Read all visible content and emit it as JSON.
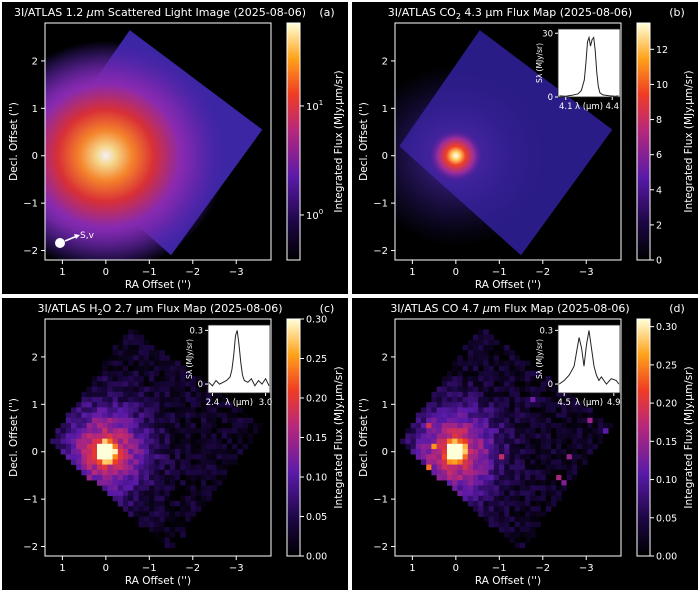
{
  "figure": {
    "panels": [
      {
        "id": "a",
        "tag": "(a)",
        "title_pre": "3I/ATLAS 1.2 ",
        "title_mu": "μ",
        "title_sub": "",
        "title_post": "m Scattered Light Image (2025-08-06)",
        "xlabel": "RA Offset ('')",
        "ylabel": "Decl. Offset ('')",
        "x_ticks": [
          "1",
          "0",
          "−1",
          "−2",
          "−3"
        ],
        "y_ticks": [
          "2",
          "1",
          "0",
          "−1",
          "−2"
        ],
        "colorbar": {
          "label": "Integrated Flux (MJy.μm/sr)",
          "scale": "log",
          "ticks": [
            {
              "base": "10",
              "exp": "1",
              "frac": 0.35
            },
            {
              "base": "10",
              "exp": "0",
              "frac": 0.81
            }
          ],
          "colormap": "hot-purple"
        },
        "image_kind": "smooth",
        "annotation": {
          "label": "S,v",
          "icon": "sun-velocity-arrow-icon"
        }
      },
      {
        "id": "b",
        "tag": "(b)",
        "title_pre": "3I/ATLAS CO",
        "title_mu": "",
        "title_sub": "2",
        "title_post": " 4.3 μm Flux Map (2025-08-06)",
        "xlabel": "RA Offset ('')",
        "ylabel": "Decl. Offset ('')",
        "x_ticks": [
          "1",
          "0",
          "−1",
          "−2",
          "−3"
        ],
        "y_ticks": [
          "2",
          "1",
          "0",
          "−1",
          "−2"
        ],
        "colorbar": {
          "label": "Integrated Flux (MJy.μm/sr)",
          "scale": "linear",
          "ticks": [
            "0",
            "2",
            "4",
            "6",
            "8",
            "10",
            "12"
          ],
          "vmax": 13.5
        },
        "image_kind": "smooth",
        "inset": {
          "ylabel": "Sλ (MJy/sr)",
          "xlabel": "λ (μm)",
          "x_ticks": [
            "4.1",
            "4.4"
          ],
          "y_ticks": [
            "0",
            "30"
          ],
          "x_range": [
            4.05,
            4.45
          ],
          "y_range": [
            0,
            32
          ],
          "spectrum": {
            "x": [
              4.06,
              4.1,
              4.14,
              4.18,
              4.2,
              4.22,
              4.23,
              4.24,
              4.25,
              4.26,
              4.27,
              4.28,
              4.29,
              4.3,
              4.31,
              4.32,
              4.34,
              4.38,
              4.42,
              4.44
            ],
            "y": [
              0.5,
              0.4,
              0.8,
              1.5,
              3,
              8,
              16,
              26,
              28,
              24,
              27,
              28,
              22,
              12,
              5,
              2,
              1,
              0.6,
              0.4,
              0.5
            ]
          }
        }
      },
      {
        "id": "c",
        "tag": "(c)",
        "title_pre": "3I/ATLAS H",
        "title_mu": "",
        "title_sub": "2",
        "title_post": "O 2.7 μm Flux Map (2025-08-06)",
        "xlabel": "RA Offset ('')",
        "ylabel": "Decl. Offset ('')",
        "x_ticks": [
          "1",
          "0",
          "−1",
          "−2",
          "−3"
        ],
        "y_ticks": [
          "2",
          "1",
          "0",
          "−1",
          "−2"
        ],
        "colorbar": {
          "label": "Integrated Flux (MJy.μm/sr)",
          "scale": "linear",
          "ticks": [
            "0.00",
            "0.05",
            "0.10",
            "0.15",
            "0.20",
            "0.25",
            "0.30"
          ],
          "vmax": 0.3
        },
        "image_kind": "noisy",
        "inset": {
          "ylabel": "Sλ (MJy/sr)",
          "xlabel": "λ (μm)",
          "x_ticks": [
            "2.4",
            "3.0"
          ],
          "y_ticks": [
            "0",
            "0.3"
          ],
          "x_range": [
            2.35,
            3.05
          ],
          "y_range": [
            -0.05,
            0.33
          ],
          "spectrum": {
            "x": [
              2.36,
              2.4,
              2.44,
              2.48,
              2.52,
              2.56,
              2.6,
              2.62,
              2.64,
              2.66,
              2.68,
              2.7,
              2.72,
              2.74,
              2.76,
              2.8,
              2.84,
              2.88,
              2.92,
              2.96,
              3.0,
              3.04
            ],
            "y": [
              0.01,
              -0.01,
              0.02,
              0.0,
              0.01,
              0.02,
              0.04,
              0.08,
              0.16,
              0.27,
              0.3,
              0.22,
              0.12,
              0.05,
              0.02,
              0.01,
              0.03,
              -0.01,
              0.02,
              0.0,
              0.03,
              -0.01
            ]
          }
        }
      },
      {
        "id": "d",
        "tag": "(d)",
        "title_pre": "3I/ATLAS CO 4.7 ",
        "title_mu": "μ",
        "title_sub": "",
        "title_post": "m Flux Map (2025-08-06)",
        "xlabel": "RA Offset ('')",
        "ylabel": "Decl. Offset ('')",
        "x_ticks": [
          "1",
          "0",
          "−1",
          "−2",
          "−3"
        ],
        "y_ticks": [
          "2",
          "1",
          "0",
          "−1",
          "−2"
        ],
        "colorbar": {
          "label": "Integrated Flux (MJy.μm/sr)",
          "scale": "linear",
          "ticks": [
            "0.00",
            "0.05",
            "0.10",
            "0.15",
            "0.20",
            "0.25",
            "0.30"
          ],
          "vmax": 0.31
        },
        "image_kind": "noisy",
        "inset": {
          "ylabel": "Sλ (MJy/sr)",
          "xlabel": "λ (μm)",
          "x_ticks": [
            "4.5",
            "4.9"
          ],
          "y_ticks": [
            "0",
            "0.3"
          ],
          "x_range": [
            4.45,
            4.95
          ],
          "y_range": [
            -0.05,
            0.33
          ],
          "spectrum": {
            "x": [
              4.46,
              4.5,
              4.54,
              4.58,
              4.6,
              4.62,
              4.64,
              4.66,
              4.68,
              4.7,
              4.72,
              4.74,
              4.76,
              4.78,
              4.8,
              4.84,
              4.88,
              4.92,
              4.94
            ],
            "y": [
              0.0,
              0.02,
              0.05,
              0.1,
              0.18,
              0.26,
              0.2,
              0.1,
              0.22,
              0.3,
              0.2,
              0.1,
              0.05,
              0.02,
              0.04,
              0.0,
              0.03,
              0.02,
              0.0
            ]
          }
        }
      }
    ]
  }
}
